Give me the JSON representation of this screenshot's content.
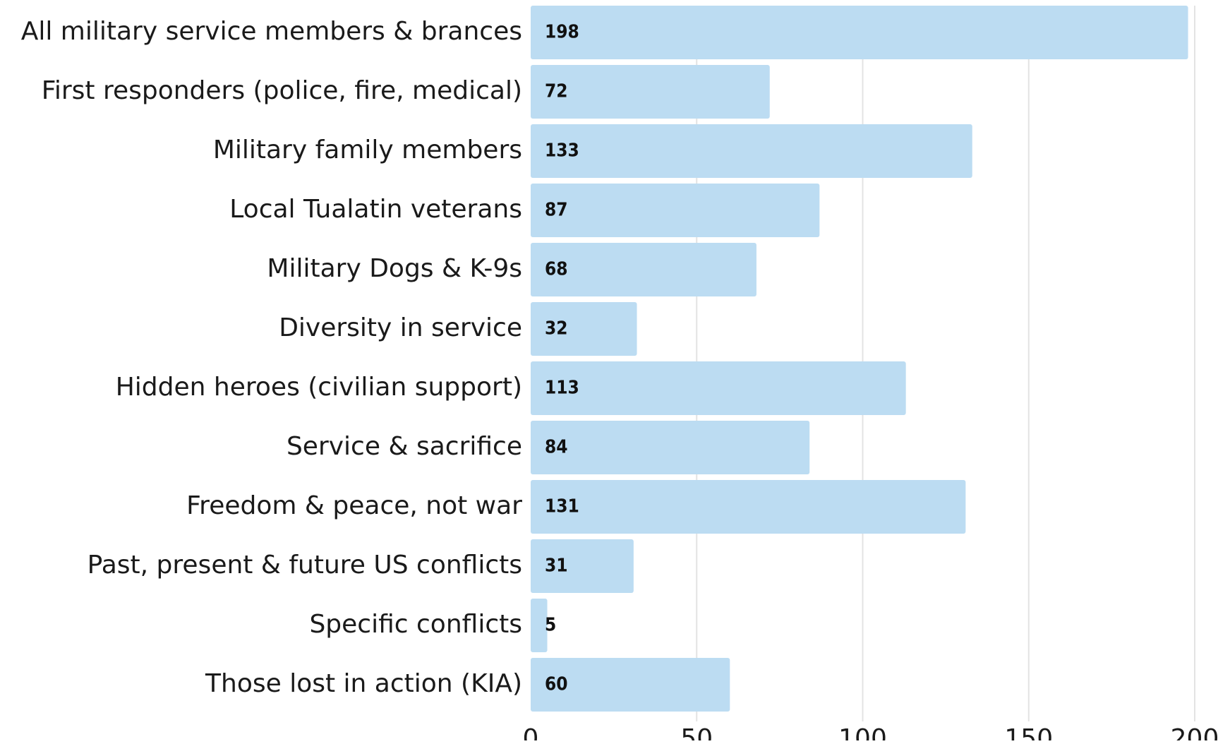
{
  "chart_data": {
    "type": "bar",
    "orientation": "horizontal",
    "title": "",
    "xlabel": "",
    "ylabel": "",
    "categories": [
      "All military service members & brances",
      "First responders (police, fire, medical)",
      "Military family members",
      "Local Tualatin veterans",
      "Military Dogs & K-9s",
      "Diversity in service",
      "Hidden heroes (civilian support)",
      "Service & sacrifice",
      "Freedom & peace, not war",
      "Past, present & future US conflicts",
      "Specific conflicts",
      "Those lost in action (KIA)"
    ],
    "values": [
      198,
      72,
      133,
      87,
      68,
      32,
      113,
      84,
      131,
      31,
      5,
      60
    ],
    "value_labels": [
      "198",
      "72",
      "133",
      "87",
      "68",
      "32",
      "113",
      "84",
      "131",
      "31",
      "5",
      "60"
    ],
    "xlim": [
      0,
      200
    ],
    "x_ticks": [
      0,
      50,
      100,
      150,
      200
    ],
    "x_tick_labels": [
      "0",
      "50",
      "100",
      "150",
      "200"
    ],
    "grid": "vertical",
    "legend": "none",
    "bar_color": "#bcdcf2"
  }
}
